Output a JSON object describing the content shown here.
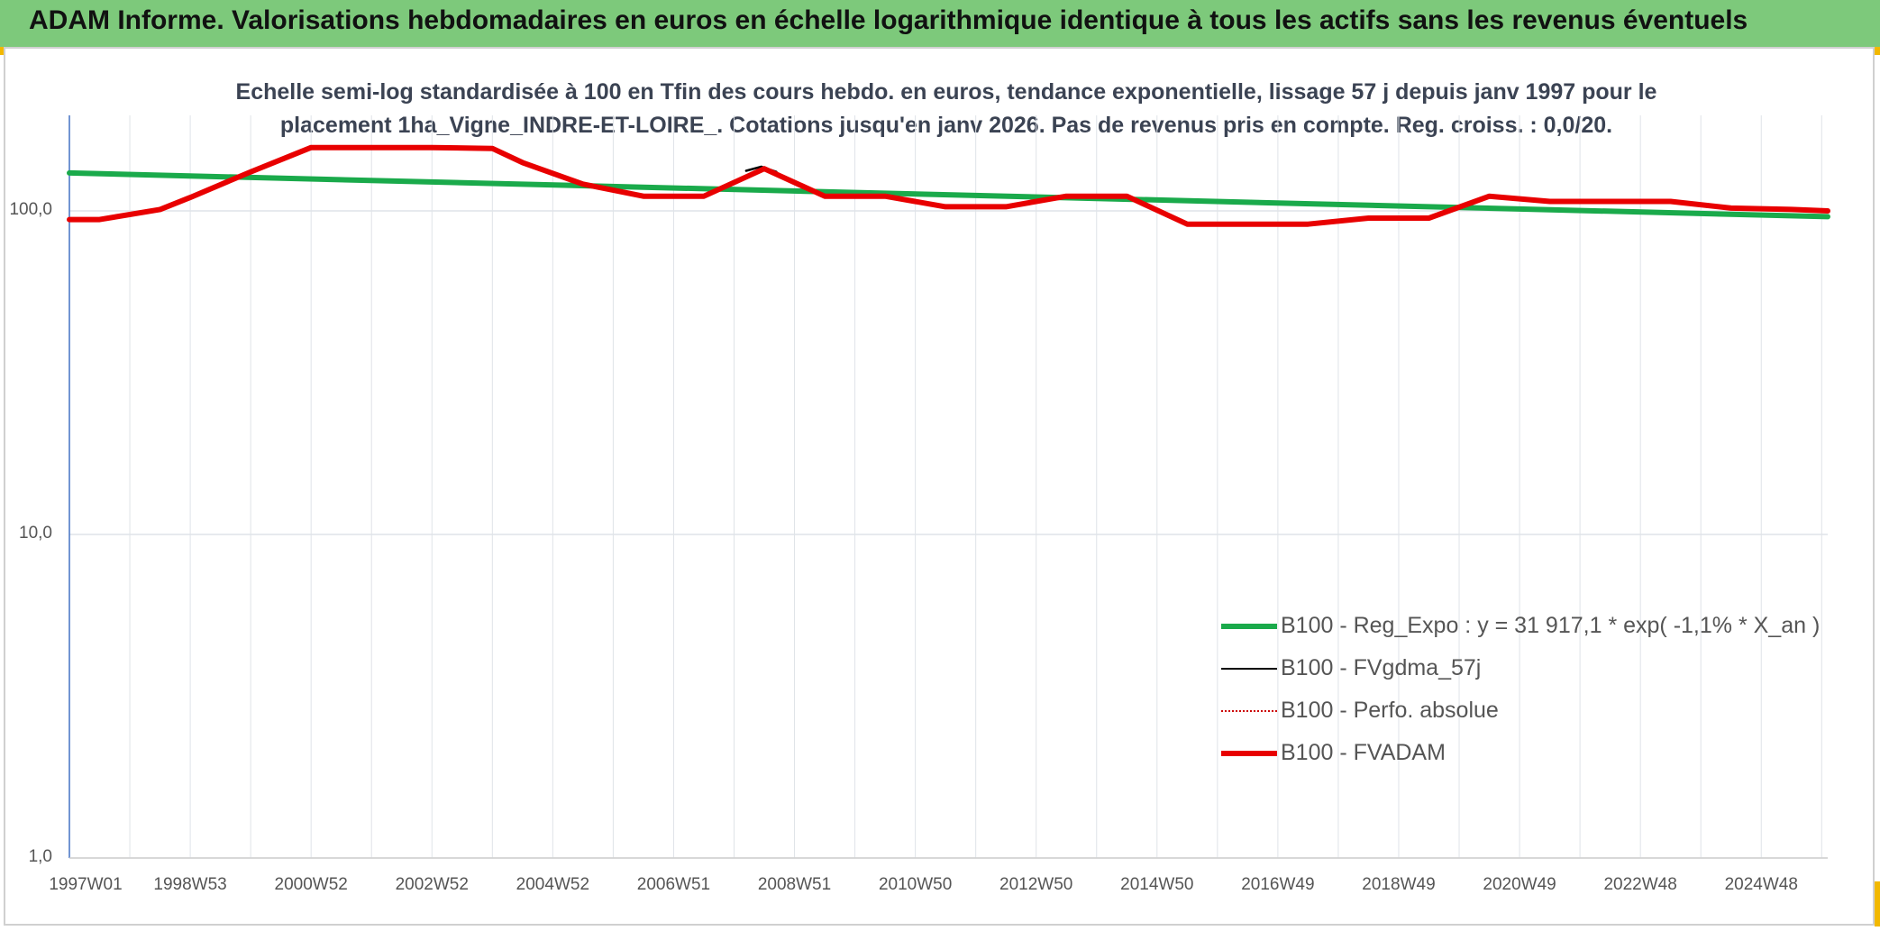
{
  "header": {
    "title": "ADAM Informe. Valorisations hebdomadaires en euros en échelle logarithmique identique à tous les actifs sans les revenus éventuels"
  },
  "chart_data": {
    "type": "line",
    "title_line1": "Echelle semi-log standardisée à 100 en Tfin des cours hebdo. en euros, tendance exponentielle, lissage 57 j depuis janv 1997 pour le",
    "title_line2": "placement 1ha_Vigne_INDRE-ET-LOIRE_. Cotations jusqu'en janv 2026. Pas de revenus pris en compte. Reg. croiss. : 0,0/20.",
    "yscale": "log",
    "ylim": [
      1,
      200
    ],
    "yticks": [
      "1,0",
      "10,0",
      "100,0"
    ],
    "xlim": [
      1997.0,
      2026.1
    ],
    "categories": [
      "1997W01",
      "1998W53",
      "2000W52",
      "2002W52",
      "2004W52",
      "2006W51",
      "2008W51",
      "2010W50",
      "2012W50",
      "2014W50",
      "2016W49",
      "2018W49",
      "2020W49",
      "2022W48",
      "2024W48"
    ],
    "category_years": [
      1997.0,
      1999.0,
      2001.0,
      2003.0,
      2005.0,
      2007.0,
      2009.0,
      2011.0,
      2013.0,
      2015.0,
      2017.0,
      2019.0,
      2021.0,
      2023.0,
      2025.0
    ],
    "series": [
      {
        "name": "B100 - Reg_Expo : y = 31 917,1 * exp( -1,1% *  X_an )",
        "color": "#1aaa4b",
        "style": "thick",
        "x": [
          1997.0,
          2026.1
        ],
        "y": [
          131,
          96
        ]
      },
      {
        "name": "B100 - FVgdma_57j",
        "color": "#000000",
        "style": "thin",
        "x": [
          2008.2,
          2008.45,
          2008.7
        ],
        "y": [
          133,
          137,
          132
        ]
      },
      {
        "name": "B100 - Perfo. absolue",
        "color": "#cc0000",
        "style": "dotted",
        "x": [],
        "y": []
      },
      {
        "name": "B100 - FVADAM",
        "color": "#e80000",
        "style": "thick",
        "x": [
          1997.0,
          1997.5,
          1998.5,
          1999.0,
          2000.0,
          2001.0,
          2002.0,
          2003.0,
          2004.0,
          2004.5,
          2005.5,
          2006.5,
          2007.5,
          2008.5,
          2009.5,
          2010.5,
          2011.5,
          2012.5,
          2013.5,
          2014.5,
          2015.5,
          2016.5,
          2017.5,
          2018.5,
          2019.5,
          2020.5,
          2021.5,
          2022.5,
          2023.5,
          2024.5,
          2025.5,
          2026.1
        ],
        "y": [
          94,
          94,
          101,
          110,
          132,
          157,
          157,
          157,
          156,
          141,
          121,
          111,
          111,
          135,
          111,
          111,
          103,
          103,
          111,
          111,
          91,
          91,
          91,
          95,
          95,
          111,
          107,
          107,
          107,
          102,
          101,
          100
        ]
      }
    ],
    "legend_position": "bottom-right"
  }
}
